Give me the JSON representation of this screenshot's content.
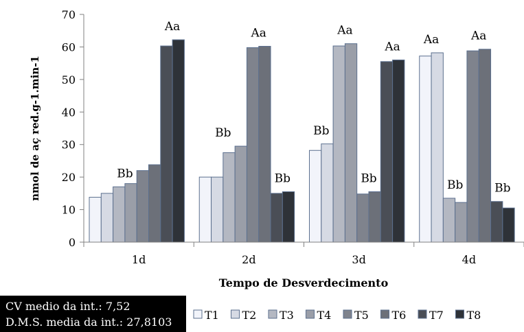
{
  "chart_data": {
    "type": "bar",
    "title": "",
    "xlabel": "Tempo de Desverdecimento",
    "ylabel": "nmol de aç red.g-1.min-1",
    "ylim": [
      0,
      70
    ],
    "yticks": [
      0,
      10,
      20,
      30,
      40,
      50,
      60,
      70
    ],
    "categories": [
      "1d",
      "2d",
      "3d",
      "4d"
    ],
    "legend_position": "bottom",
    "grid": false,
    "series": [
      {
        "name": "T1",
        "color": "#f2f4fa",
        "values": [
          13.8,
          20.0,
          28.2,
          57.2
        ]
      },
      {
        "name": "T2",
        "color": "#d6dae4",
        "values": [
          15.0,
          20.0,
          30.2,
          58.2
        ]
      },
      {
        "name": "T3",
        "color": "#b4b8c2",
        "values": [
          17.0,
          27.5,
          60.3,
          13.5
        ]
      },
      {
        "name": "T4",
        "color": "#9a9ea8",
        "values": [
          18.0,
          29.5,
          61.0,
          12.2
        ]
      },
      {
        "name": "T5",
        "color": "#7f838d",
        "values": [
          22.0,
          59.8,
          14.8,
          58.8
        ]
      },
      {
        "name": "T6",
        "color": "#6c7079",
        "values": [
          23.8,
          60.2,
          15.5,
          59.3
        ]
      },
      {
        "name": "T7",
        "color": "#4a4e56",
        "values": [
          60.3,
          15.0,
          55.5,
          12.5
        ]
      },
      {
        "name": "T8",
        "color": "#2e3238",
        "values": [
          62.2,
          15.5,
          56.0,
          10.5
        ]
      }
    ],
    "annotations": [
      {
        "text": "Bb",
        "category": 0,
        "series_from": 0,
        "series_to": 5,
        "y": 17
      },
      {
        "text": "Aa",
        "category": 0,
        "series_from": 6,
        "series_to": 7,
        "y": 62.2
      },
      {
        "text": "Bb",
        "category": 1,
        "series_from": 0,
        "series_to": 3,
        "y": 29.5
      },
      {
        "text": "Aa",
        "category": 1,
        "series_from": 4,
        "series_to": 5,
        "y": 60.2
      },
      {
        "text": "Bb",
        "category": 1,
        "series_from": 6,
        "series_to": 7,
        "y": 15.5
      },
      {
        "text": "Bb",
        "category": 2,
        "series_from": 0,
        "series_to": 1,
        "y": 30.2
      },
      {
        "text": "Aa",
        "category": 2,
        "series_from": 2,
        "series_to": 3,
        "y": 61.0
      },
      {
        "text": "Bb",
        "category": 2,
        "series_from": 4,
        "series_to": 5,
        "y": 15.5
      },
      {
        "text": "Aa",
        "category": 2,
        "series_from": 6,
        "series_to": 7,
        "y": 56.0
      },
      {
        "text": "Aa",
        "category": 3,
        "series_from": 0,
        "series_to": 1,
        "y": 58.2
      },
      {
        "text": "Bb",
        "category": 3,
        "series_from": 2,
        "series_to": 3,
        "y": 13.5
      },
      {
        "text": "Aa",
        "category": 3,
        "series_from": 4,
        "series_to": 5,
        "y": 59.3
      },
      {
        "text": "Bb",
        "category": 3,
        "series_from": 6,
        "series_to": 7,
        "y": 12.5
      }
    ]
  },
  "stats": {
    "cv": "CV medio da int.: 7,52",
    "dms": "D.M.S. media da int.: 27,8103"
  }
}
